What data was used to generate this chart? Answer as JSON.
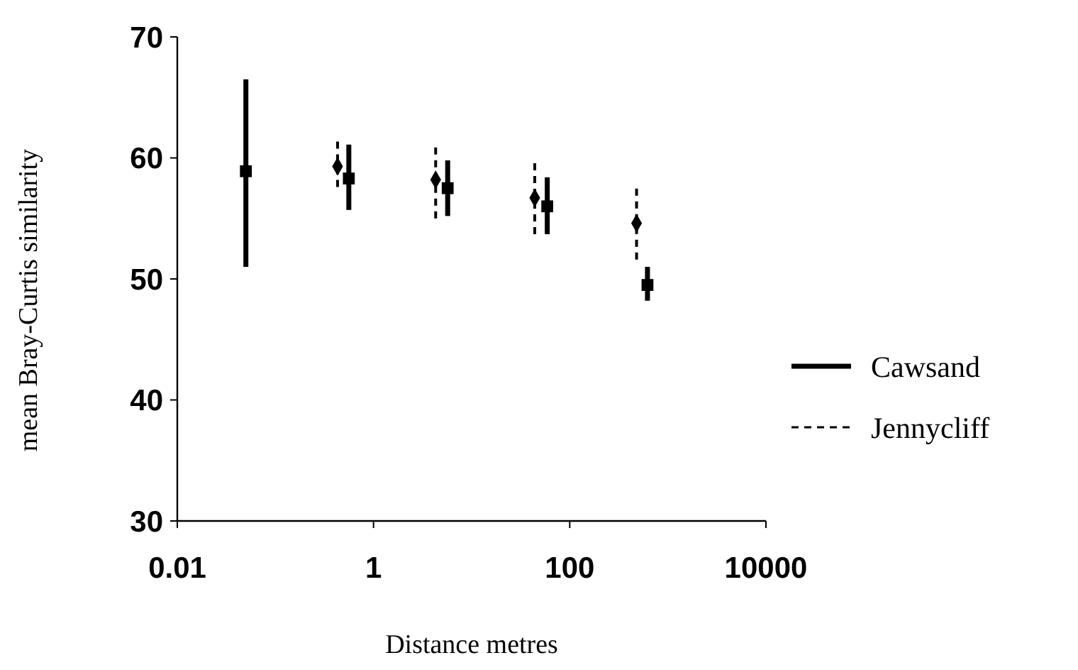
{
  "chart_data": {
    "type": "scatter",
    "xlabel": "Distance metres",
    "ylabel": "mean Bray-Curtis similarity",
    "log": "x",
    "xlim": [
      0.01,
      10000
    ],
    "xticks": [
      0.01,
      1,
      100,
      10000
    ],
    "ylim": [
      30,
      70
    ],
    "yticks": [
      30,
      40,
      50,
      60,
      70
    ],
    "grid": false,
    "legend": "right",
    "series": [
      {
        "name": "Cawsand",
        "color": "#000000",
        "marker": "square",
        "line_style": "solid",
        "x": [
          0.05,
          0.56,
          5.7,
          59,
          620
        ],
        "values": [
          58.9,
          58.3,
          57.5,
          56.0,
          49.5
        ],
        "errors": [
          [
            51.0,
            66.5
          ],
          [
            55.7,
            61.1
          ],
          [
            55.2,
            59.8
          ],
          [
            53.7,
            58.4
          ],
          [
            48.2,
            51.0
          ]
        ]
      },
      {
        "name": "Jennycliff",
        "color": "#000000",
        "marker": "diamond",
        "line_style": "dashed",
        "x": [
          0.43,
          4.3,
          44,
          480
        ],
        "values": [
          59.3,
          58.2,
          56.7,
          54.6
        ],
        "errors": [
          [
            57.6,
            61.7
          ],
          [
            55.0,
            61.1
          ],
          [
            53.7,
            59.9
          ],
          [
            51.6,
            57.6
          ]
        ]
      }
    ]
  }
}
